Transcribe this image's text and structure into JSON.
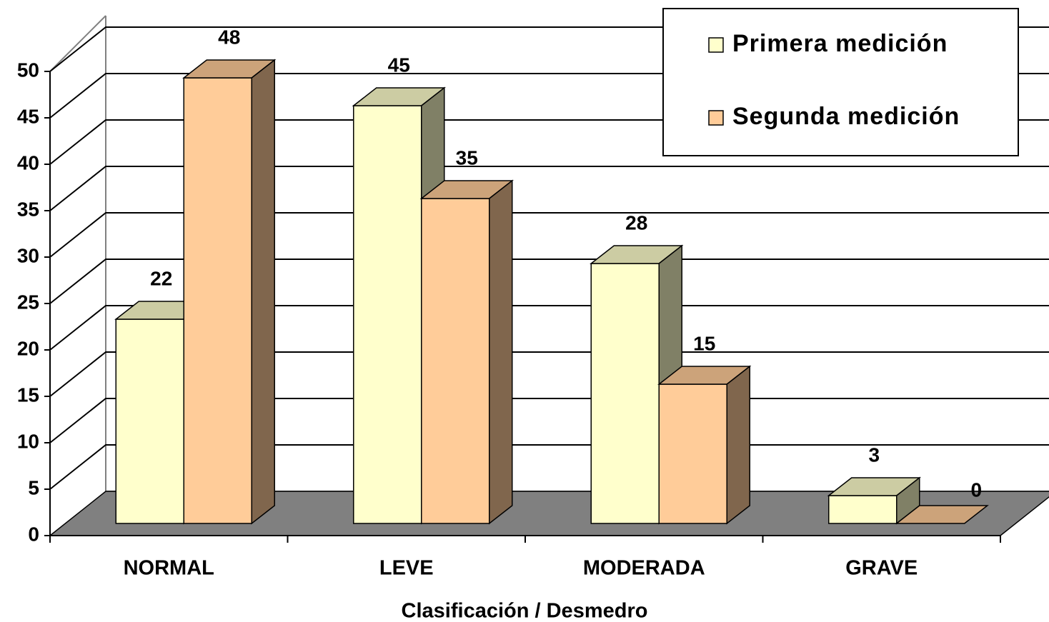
{
  "chart_data": {
    "type": "bar3d",
    "categories": [
      "NORMAL",
      "LEVE",
      "MODERADA",
      "GRAVE"
    ],
    "series": [
      {
        "name": "Primera medición",
        "color": "#FFFFCC",
        "values": [
          22,
          45,
          28,
          3
        ]
      },
      {
        "name": "Segunda medición",
        "color": "#FFCC99",
        "values": [
          48,
          35,
          15,
          0
        ]
      }
    ],
    "x_label": "Clasificación / Desmedro",
    "ylim": [
      0,
      50
    ],
    "yticks": [
      0,
      5,
      10,
      15,
      20,
      25,
      30,
      35,
      40,
      45,
      50
    ],
    "grid": true,
    "legend": "top-right"
  }
}
